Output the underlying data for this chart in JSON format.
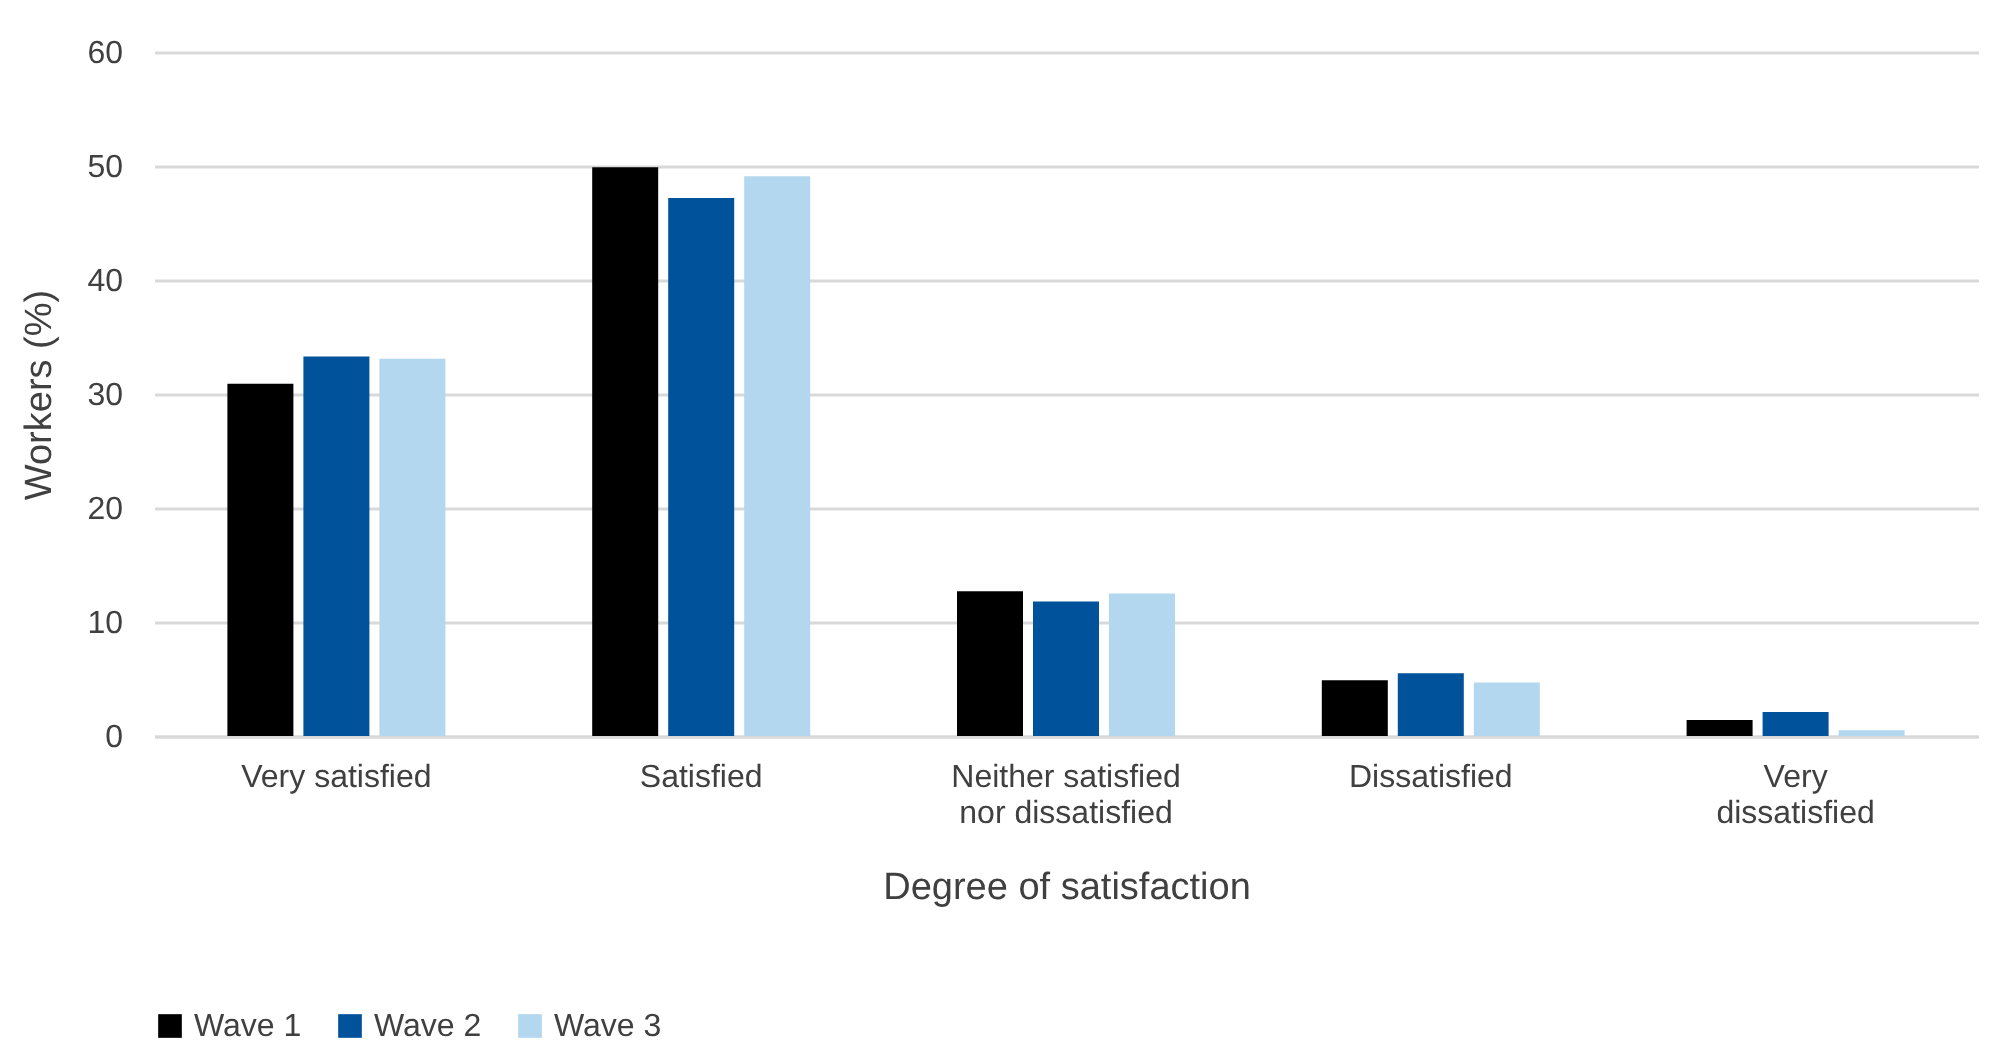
{
  "chart_data": {
    "type": "bar",
    "xlabel": "Degree of satisfaction",
    "ylabel": "Workers (%)",
    "categories": [
      "Very satisfied",
      "Satisfied",
      "Neither satisfied nor dissatisfied",
      "Dissatisfied",
      "Very dissatisfied"
    ],
    "series": [
      {
        "name": "Wave 1",
        "color": "#000000",
        "values": [
          30.9,
          49.9,
          12.7,
          4.9,
          1.4
        ]
      },
      {
        "name": "Wave 2",
        "color": "#00529b",
        "values": [
          33.3,
          47.2,
          11.8,
          5.5,
          2.1
        ]
      },
      {
        "name": "Wave 3",
        "color": "#b3d7ee",
        "values": [
          33.1,
          49.1,
          12.5,
          4.7,
          0.5
        ]
      }
    ],
    "ylim": [
      0,
      60
    ],
    "yticks": [
      0,
      10,
      20,
      30,
      40,
      50,
      60
    ],
    "grid": "y",
    "legend": "bottom"
  }
}
